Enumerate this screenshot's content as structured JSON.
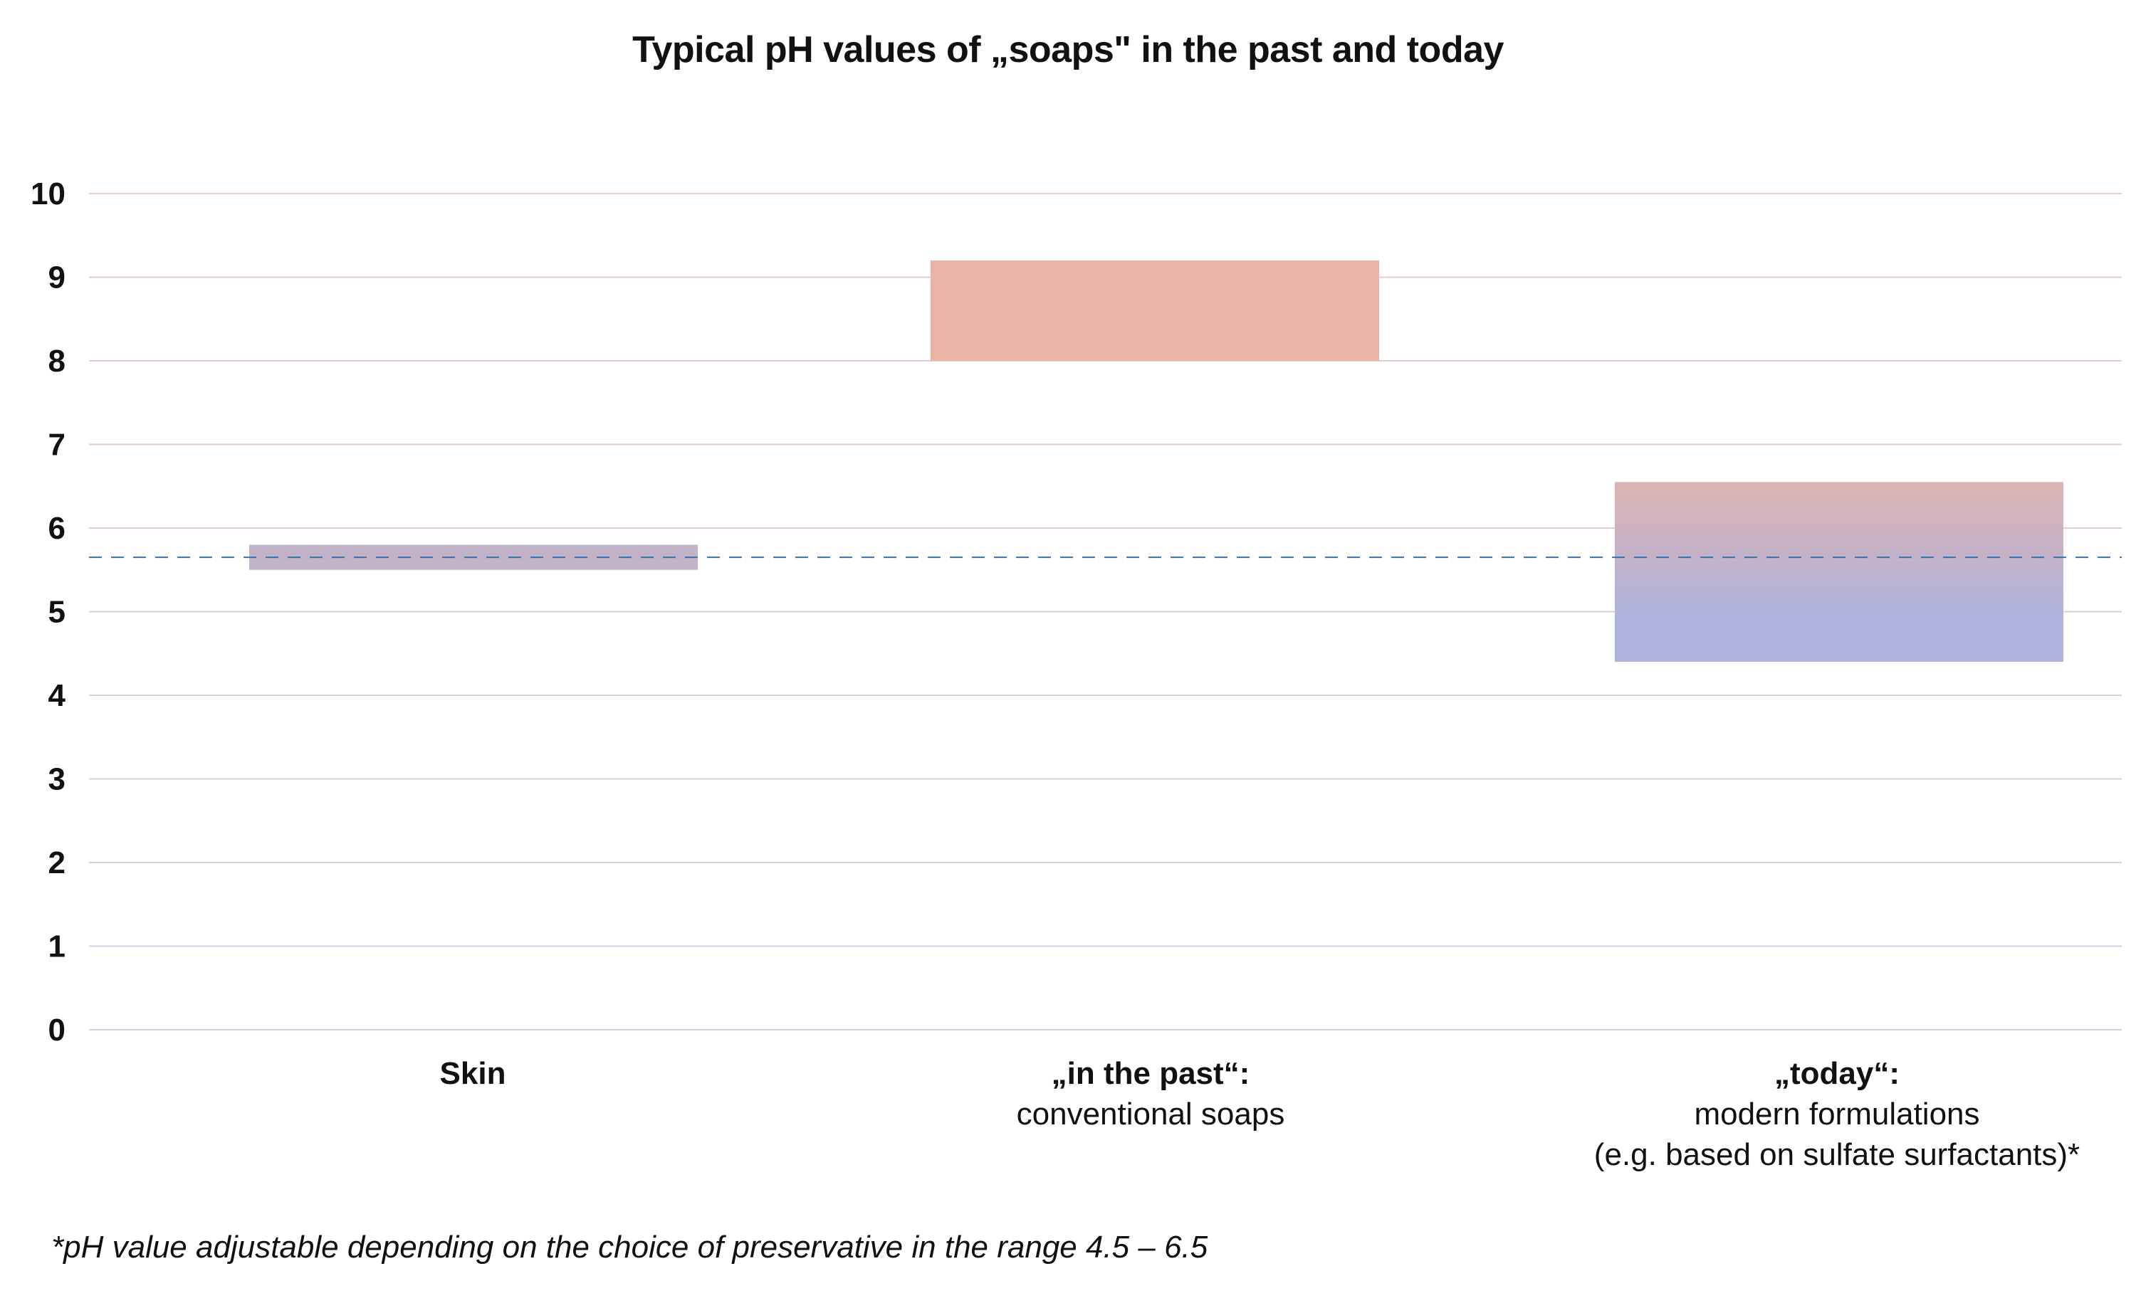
{
  "title": "Typical pH values of „soaps\" in the past and today",
  "footnote": "*pH value adjustable depending on the choice of preservative in the range 4.5 – 6.5",
  "colors": {
    "skin_bar": "#c3b3c9",
    "past_bar": "#e9b3a6",
    "today_bar_top": "#ddb3b2",
    "today_bar_bottom": "#aeb2dc",
    "grid_top": "#efc9c4",
    "grid_bottom": "#cfd0e6",
    "skin_line": "#3d6fa8"
  },
  "chart_data": {
    "type": "bar",
    "subtype": "floating-range",
    "title": "Typical pH values of „soaps\" in the past and today",
    "ylim": [
      0,
      10
    ],
    "yticks": [
      "0",
      "1",
      "2",
      "3",
      "4",
      "5",
      "6",
      "7",
      "8",
      "9",
      "10"
    ],
    "grid": true,
    "categories": [
      {
        "label": "Skin",
        "sublabel": "",
        "sublabel2": "",
        "low": 5.5,
        "high": 5.8
      },
      {
        "label": "„in the past“:",
        "sublabel": "conventional soaps",
        "sublabel2": "",
        "low": 8.0,
        "high": 9.2
      },
      {
        "label": "„today“:",
        "sublabel": "modern formulations",
        "sublabel2": "(e.g. based on sulfate surfactants)*",
        "low": 4.4,
        "high": 6.55
      }
    ],
    "reference_line": {
      "value": 5.65,
      "style": "dashed"
    }
  }
}
